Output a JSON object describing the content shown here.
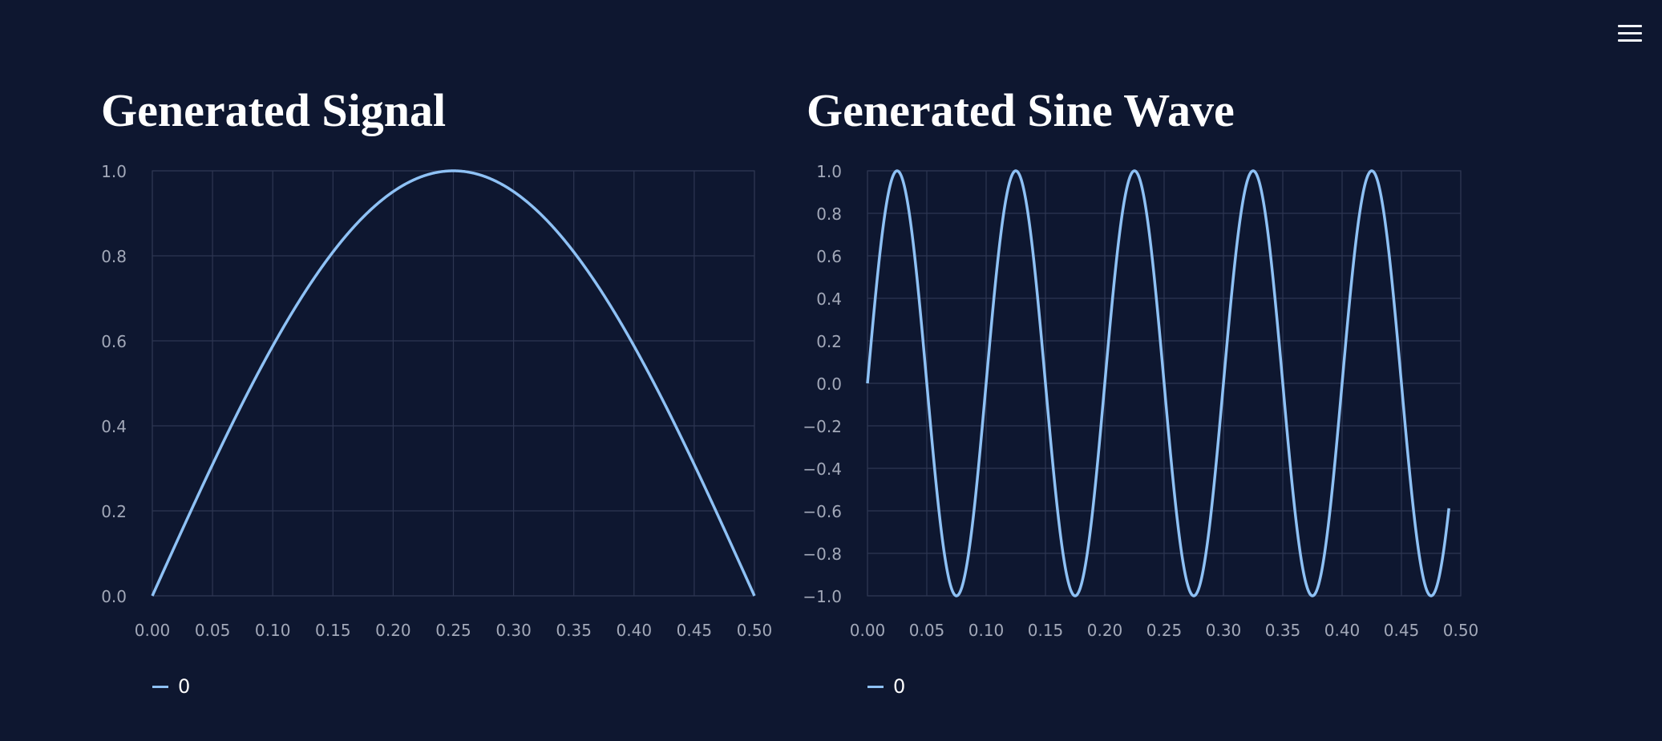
{
  "header": {
    "menu_icon": "hamburger-menu-icon"
  },
  "colors": {
    "background": "#0e1730",
    "series": "#8ec1f5",
    "grid": "#2d3652"
  },
  "chart_data": [
    {
      "type": "line",
      "title": "Generated Signal",
      "xlabel": "",
      "ylabel": "",
      "function": "sin(2*pi*1*x)",
      "x_range": [
        0,
        0.5
      ],
      "xlim": [
        0,
        0.5
      ],
      "ylim": [
        0,
        1.0
      ],
      "x_ticks": [
        "0.00",
        "0.05",
        "0.10",
        "0.15",
        "0.20",
        "0.25",
        "0.30",
        "0.35",
        "0.40",
        "0.45",
        "0.50"
      ],
      "y_ticks": [
        "0.0",
        "0.2",
        "0.4",
        "0.6",
        "0.8",
        "1.0"
      ],
      "grid": true,
      "legend_position": "bottom-left",
      "series": [
        {
          "name": "0",
          "x": [
            0,
            0.025,
            0.05,
            0.075,
            0.1,
            0.125,
            0.15,
            0.175,
            0.2,
            0.225,
            0.25,
            0.275,
            0.3,
            0.325,
            0.35,
            0.375,
            0.4,
            0.425,
            0.45,
            0.475,
            0.5
          ],
          "values": [
            0,
            0.156,
            0.309,
            0.454,
            0.588,
            0.707,
            0.809,
            0.891,
            0.951,
            0.988,
            1.0,
            0.988,
            0.951,
            0.891,
            0.809,
            0.707,
            0.588,
            0.454,
            0.309,
            0.156,
            0
          ]
        }
      ]
    },
    {
      "type": "line",
      "title": "Generated Sine Wave",
      "xlabel": "",
      "ylabel": "",
      "function": "sin(2*pi*10*x)",
      "x_range": [
        0,
        0.49
      ],
      "xlim": [
        0,
        0.5
      ],
      "ylim": [
        -1.0,
        1.0
      ],
      "x_ticks": [
        "0.00",
        "0.05",
        "0.10",
        "0.15",
        "0.20",
        "0.25",
        "0.30",
        "0.35",
        "0.40",
        "0.45",
        "0.50"
      ],
      "y_ticks": [
        "−1.0",
        "−0.8",
        "−0.6",
        "−0.4",
        "−0.2",
        "0.0",
        "0.2",
        "0.4",
        "0.6",
        "0.8",
        "1.0"
      ],
      "grid": true,
      "legend_position": "bottom-left",
      "series": [
        {
          "name": "0",
          "x": [
            0,
            0.025,
            0.05,
            0.075,
            0.1,
            0.125,
            0.15,
            0.175,
            0.2,
            0.225,
            0.25,
            0.275,
            0.3,
            0.325,
            0.35,
            0.375,
            0.4,
            0.425,
            0.45,
            0.475,
            0.49
          ],
          "values": [
            0,
            1,
            0,
            -1,
            0,
            1,
            0,
            -1,
            0,
            1,
            0,
            -1,
            0,
            1,
            0,
            -1,
            0,
            1,
            0,
            -1,
            -0.588
          ]
        }
      ]
    }
  ]
}
